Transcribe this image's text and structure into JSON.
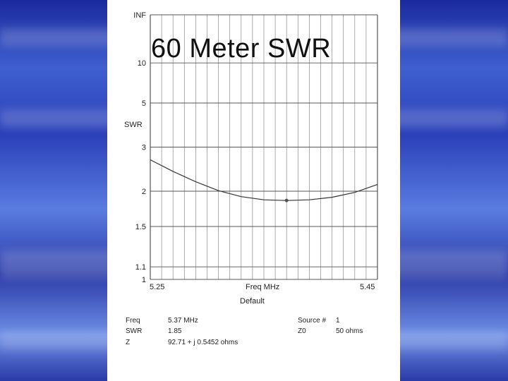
{
  "slide": {
    "title": "60 Meter SWR"
  },
  "chart_data": {
    "type": "line",
    "title": "60 Meter SWR",
    "ylabel": "SWR",
    "xlabel": "Freq MHz",
    "x_range": [
      5.25,
      5.45
    ],
    "x_tick_labels": [
      "5.25",
      "5.45"
    ],
    "y_tick_labels": [
      "INF",
      "10",
      "5",
      "3",
      "2",
      "1.5",
      "1.1",
      "1"
    ],
    "y_scale": "reflection-coefficient",
    "grid": true,
    "series": [
      {
        "x": [
          5.25,
          5.27,
          5.29,
          5.31,
          5.33,
          5.35,
          5.37,
          5.39,
          5.41,
          5.43,
          5.45
        ],
        "y": [
          2.65,
          2.38,
          2.17,
          2.01,
          1.91,
          1.86,
          1.85,
          1.86,
          1.9,
          1.98,
          2.12
        ]
      }
    ],
    "marker": {
      "x": 5.37,
      "y": 1.85
    },
    "footer_label": "Default"
  },
  "readout": {
    "freq_label": "Freq",
    "freq_value": "5.37 MHz",
    "swr_label": "SWR",
    "swr_value": "1.85",
    "z_label": "Z",
    "z_value": "92.71 + j 0.5452 ohms",
    "source_label": "Source #",
    "source_value": "1",
    "z0_label": "Z0",
    "z0_value": "50 ohms"
  }
}
